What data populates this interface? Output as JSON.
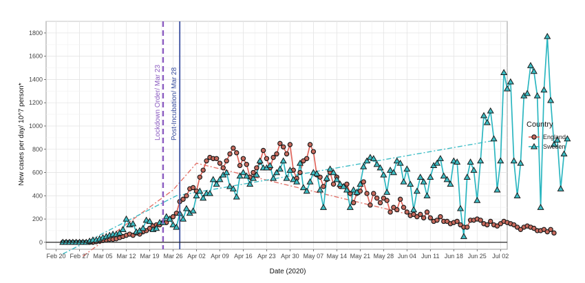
{
  "chart_data": {
    "type": "line",
    "title": "",
    "xlabel": "Date (2020)",
    "ylabel": "New cases per day/ 10^7 person*",
    "xlim": [
      "2020-02-17",
      "2020-07-04"
    ],
    "ylim": [
      -60,
      1900
    ],
    "x_ticks": [
      "Feb 20",
      "Feb 27",
      "Mar 05",
      "Mar 12",
      "Mar 19",
      "Mar 26",
      "Apr 02",
      "Apr 09",
      "Apr 16",
      "Apr 23",
      "Apr 30",
      "May 07",
      "May 14",
      "May 21",
      "May 28",
      "Jun 04",
      "Jun 11",
      "Jun 18",
      "Jun 25",
      "Jul 02"
    ],
    "y_ticks": [
      0,
      200,
      400,
      600,
      800,
      1000,
      1200,
      1400,
      1600,
      1800
    ],
    "grid": true,
    "legend": {
      "title": "Country",
      "placement": "right"
    },
    "annotations": [
      {
        "label": "Lockdown Order/ Mar 23",
        "date": "2020-03-23",
        "style": "dashed",
        "color": "#8a5ac0"
      },
      {
        "label": "Post-Incubation/ Mar 28",
        "date": "2020-03-28",
        "style": "solid",
        "color": "#3a4fa0"
      }
    ],
    "series": [
      {
        "name": "England",
        "color": "#e0645a",
        "marker": "circle",
        "start_date": "2020-02-22",
        "values": [
          0,
          0,
          0,
          0,
          0,
          0,
          0,
          0,
          0,
          0,
          5,
          10,
          15,
          20,
          25,
          25,
          30,
          40,
          50,
          60,
          70,
          60,
          80,
          70,
          90,
          100,
          120,
          140,
          150,
          150,
          170,
          170,
          200,
          220,
          250,
          350,
          370,
          400,
          460,
          470,
          440,
          560,
          620,
          700,
          730,
          720,
          720,
          680,
          640,
          700,
          760,
          810,
          770,
          660,
          720,
          670,
          560,
          600,
          640,
          690,
          790,
          720,
          640,
          730,
          760,
          850,
          820,
          760,
          840,
          620,
          550,
          600,
          700,
          720,
          840,
          780,
          580,
          560,
          480,
          540,
          600,
          500,
          560,
          480,
          480,
          500,
          420,
          340,
          420,
          440,
          520,
          420,
          320,
          420,
          380,
          340,
          380,
          360,
          260,
          300,
          280,
          370,
          300,
          260,
          230,
          240,
          220,
          240,
          210,
          260,
          210,
          180,
          190,
          220,
          180,
          180,
          160,
          170,
          180,
          150,
          130,
          130,
          190,
          190,
          200,
          190,
          160,
          150,
          180,
          150,
          140,
          160,
          180,
          170,
          160,
          150,
          130,
          110,
          130,
          140,
          130,
          120,
          100,
          100,
          110,
          90,
          110,
          80
        ],
        "trend": {
          "points": [
            [
              "2020-02-28",
              -120
            ],
            [
              "2020-03-26",
              450
            ],
            [
              "2020-04-02",
              680
            ],
            [
              "2020-06-06",
              230
            ]
          ]
        }
      },
      {
        "name": "Sweden",
        "color": "#2ab6c0",
        "marker": "triangle",
        "start_date": "2020-02-22",
        "values": [
          0,
          0,
          0,
          0,
          0,
          0,
          0,
          0,
          10,
          20,
          20,
          30,
          40,
          50,
          60,
          70,
          70,
          80,
          110,
          200,
          150,
          160,
          90,
          100,
          120,
          190,
          180,
          110,
          120,
          170,
          170,
          220,
          200,
          150,
          130,
          250,
          200,
          290,
          250,
          270,
          400,
          440,
          380,
          420,
          420,
          540,
          500,
          540,
          580,
          600,
          480,
          460,
          390,
          570,
          600,
          570,
          500,
          550,
          580,
          700,
          640,
          640,
          660,
          550,
          600,
          630,
          700,
          550,
          620,
          540,
          520,
          680,
          470,
          440,
          520,
          600,
          590,
          450,
          300,
          550,
          630,
          600,
          540,
          500,
          480,
          450,
          300,
          450,
          430,
          500,
          650,
          700,
          730,
          720,
          670,
          640,
          580,
          430,
          620,
          600,
          700,
          680,
          520,
          630,
          500,
          280,
          440,
          560,
          520,
          400,
          560,
          660,
          680,
          720,
          570,
          540,
          500,
          700,
          690,
          290,
          50,
          560,
          690,
          620,
          360,
          700,
          1090,
          1030,
          1130,
          890,
          450,
          700,
          1460,
          1320,
          1380,
          700,
          400,
          680,
          1260,
          1280,
          1520,
          1470,
          1260,
          300,
          1310,
          1770,
          1220,
          840,
          880,
          460,
          760,
          890
        ],
        "trend": {
          "points": [
            [
              "2020-02-22",
              -100
            ],
            [
              "2020-03-27",
              400
            ],
            [
              "2020-07-01",
              880
            ]
          ]
        }
      }
    ]
  }
}
